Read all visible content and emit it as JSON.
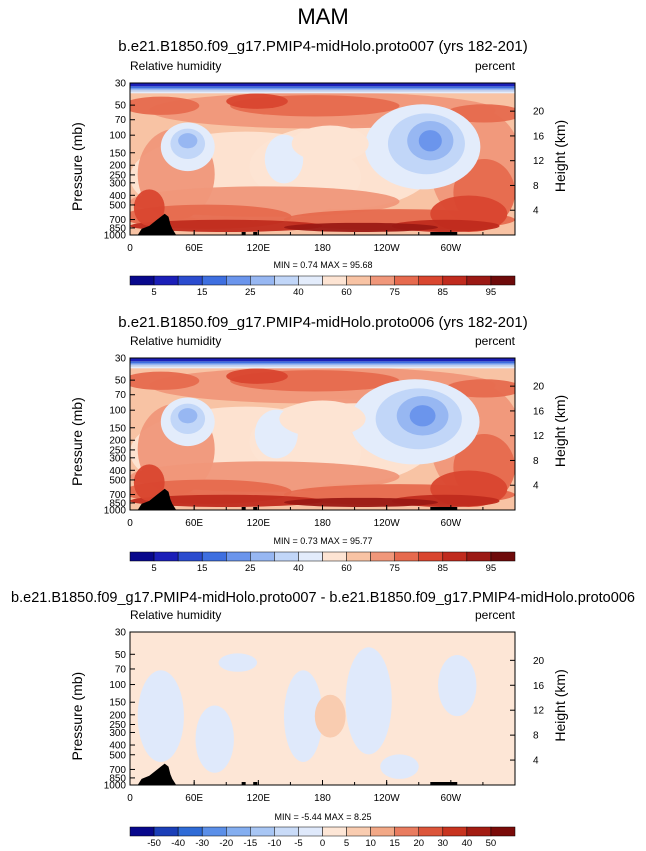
{
  "title": "MAM",
  "colors": {
    "rh_levels": [
      "#08088c",
      "#1b1fb8",
      "#2b4ccf",
      "#3e6fe0",
      "#6b95ec",
      "#97b7f2",
      "#c1d6f8",
      "#e3ecfb",
      "#fde4d3",
      "#f8c3a4",
      "#f0977a",
      "#e66a4e",
      "#d9462f",
      "#c02b1e",
      "#9b1914",
      "#6e0a0a"
    ],
    "diff_levels": [
      "#08088c",
      "#1b3fb8",
      "#2f6bd6",
      "#5b8fe8",
      "#84aef0",
      "#a8c6f4",
      "#c9dbf8",
      "#dfe9fb",
      "#fde6d6",
      "#f9ccb0",
      "#f2a886",
      "#e97c5f",
      "#dc553a",
      "#c8341f",
      "#a31c12",
      "#7a0b09"
    ]
  },
  "chart_data": [
    {
      "type": "heatmap",
      "title": "b.e21.B1850.f09_g17.PMIP4-midHolo.proto007 (yrs 182-201)",
      "left_label": "Relative humidity",
      "right_label": "percent",
      "ylabel": "Pressure (mb)",
      "y2label": "Height (km)",
      "xticks": [
        "0",
        "60E",
        "120E",
        "180",
        "120W",
        "60W"
      ],
      "yticks": [
        "1000",
        "850",
        "700",
        "500",
        "400",
        "300",
        "250",
        "200",
        "150",
        "100",
        "70",
        "50",
        "30"
      ],
      "y2ticks": [
        "4",
        "8",
        "12",
        "16",
        "20"
      ],
      "minmax": "MIN =   0.74  MAX =  95.68",
      "colorbar_labels": [
        "5",
        "15",
        "25",
        "40",
        "60",
        "75",
        "85",
        "95"
      ],
      "ylim": [
        1000,
        30
      ]
    },
    {
      "type": "heatmap",
      "title": "b.e21.B1850.f09_g17.PMIP4-midHolo.proto006 (yrs 182-201)",
      "left_label": "Relative humidity",
      "right_label": "percent",
      "ylabel": "Pressure (mb)",
      "y2label": "Height (km)",
      "xticks": [
        "0",
        "60E",
        "120E",
        "180",
        "120W",
        "60W"
      ],
      "yticks": [
        "1000",
        "850",
        "700",
        "500",
        "400",
        "300",
        "250",
        "200",
        "150",
        "100",
        "70",
        "50",
        "30"
      ],
      "y2ticks": [
        "4",
        "8",
        "12",
        "16",
        "20"
      ],
      "minmax": "MIN =   0.73  MAX =  95.77",
      "colorbar_labels": [
        "5",
        "15",
        "25",
        "40",
        "60",
        "75",
        "85",
        "95"
      ],
      "ylim": [
        1000,
        30
      ]
    },
    {
      "type": "heatmap",
      "title": "b.e21.B1850.f09_g17.PMIP4-midHolo.proto007 - b.e21.B1850.f09_g17.PMIP4-midHolo.proto006",
      "left_label": "Relative humidity",
      "right_label": "percent",
      "ylabel": "Pressure (mb)",
      "y2label": "Height (km)",
      "xticks": [
        "0",
        "60E",
        "120E",
        "180",
        "120W",
        "60W"
      ],
      "yticks": [
        "1000",
        "850",
        "700",
        "500",
        "400",
        "300",
        "250",
        "200",
        "150",
        "100",
        "70",
        "50",
        "30"
      ],
      "y2ticks": [
        "4",
        "8",
        "12",
        "16",
        "20"
      ],
      "minmax": "MIN =  -5.44  MAX =   8.25",
      "colorbar_labels": [
        "-50",
        "-40",
        "-30",
        "-20",
        "-15",
        "-10",
        "-5",
        "0",
        "5",
        "10",
        "15",
        "20",
        "30",
        "40",
        "50"
      ],
      "ylim": [
        1000,
        30
      ]
    }
  ]
}
